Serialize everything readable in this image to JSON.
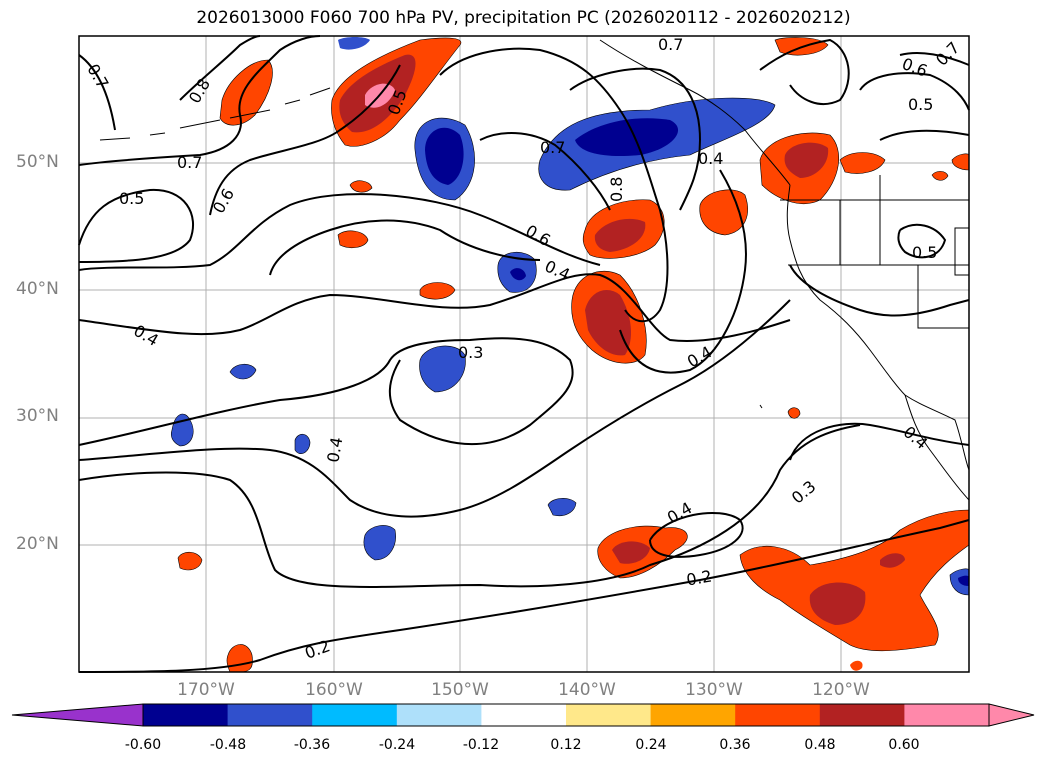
{
  "title": "2026013000 F060 700 hPa PV, precipitation PC (2026020112 - 2026020212)",
  "lat_labels": [
    "50°N",
    "40°N",
    "30°N",
    "20°N"
  ],
  "lon_labels": [
    "170°W",
    "160°W",
    "150°W",
    "140°W",
    "130°W",
    "120°W"
  ],
  "contour_labels": [
    "0.7",
    "0.8",
    "0.5",
    "0.7",
    "0.6",
    "0.5",
    "0.7",
    "0.7",
    "0.6",
    "0.7",
    "0.4",
    "0.8",
    "0.6",
    "0.5",
    "0.4",
    "0.3",
    "0.4",
    "0.4",
    "0.3",
    "0.4",
    "0.2",
    "0.2",
    "0.5",
    "0.4",
    "0.4"
  ],
  "colorbar": {
    "ticks": [
      "-0.60",
      "-0.48",
      "-0.36",
      "-0.24",
      "-0.12",
      "0.12",
      "0.24",
      "0.36",
      "0.48",
      "0.60"
    ],
    "colors": {
      "under": "#9932cc",
      "bins": [
        "#000090",
        "#3050cc",
        "#00bbff",
        "#aee0fa",
        "#ffffff",
        "#ffe88a",
        "#ffa500",
        "#ff4500",
        "#b22222",
        "#ff88aa"
      ],
      "over": "#ff88aa"
    }
  }
}
